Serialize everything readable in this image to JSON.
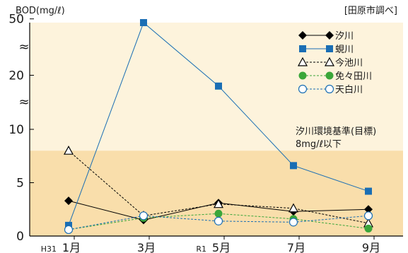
{
  "chart_data": {
    "type": "line",
    "ylabel": "BOD(mg/ℓ)",
    "source": "[田原市調べ]",
    "y_ticks": [
      "0",
      "5",
      "10",
      "20",
      "50"
    ],
    "axis_break_marks": "≈",
    "categories": [
      "H31 1月",
      "3月",
      "R1 5月",
      "7月",
      "9月"
    ],
    "x_tick_labels": [
      {
        "era": "H31",
        "month": "1月"
      },
      {
        "era": "",
        "month": "3月"
      },
      {
        "era": "R1",
        "month": "5月"
      },
      {
        "era": "",
        "month": "7月"
      },
      {
        "era": "",
        "month": "9月"
      }
    ],
    "series": [
      {
        "name": "汐川",
        "values": [
          3.3,
          1.5,
          3.1,
          2.3,
          2.5
        ],
        "color": "#000000",
        "marker": "diamond",
        "dash": "solid"
      },
      {
        "name": "蜆川",
        "values": [
          1.0,
          48.0,
          18.0,
          6.6,
          4.2
        ],
        "color": "#1a6eb4",
        "marker": "square",
        "dash": "solid"
      },
      {
        "name": "今池川",
        "values": [
          8.0,
          1.9,
          3.0,
          2.6,
          1.2
        ],
        "color": "#000000",
        "marker": "triangle",
        "dash": "dotted"
      },
      {
        "name": "免々田川",
        "values": [
          0.6,
          1.7,
          2.1,
          1.6,
          0.7
        ],
        "color": "#3aa63a",
        "marker": "circle",
        "dash": "dotted"
      },
      {
        "name": "天白川",
        "values": [
          0.6,
          1.9,
          1.4,
          1.3,
          1.9
        ],
        "color": "#1a6eb4",
        "marker": "circle-open",
        "dash": "dotted"
      }
    ],
    "standard_line1": "汐川環境基準(目標)",
    "standard_line2": "8mg/ℓ以下",
    "standard_value": 8,
    "colors": {
      "upper_band": "#fdf3dc",
      "lower_band": "#f9deab"
    },
    "legend_position": "top-right",
    "grid": false
  }
}
